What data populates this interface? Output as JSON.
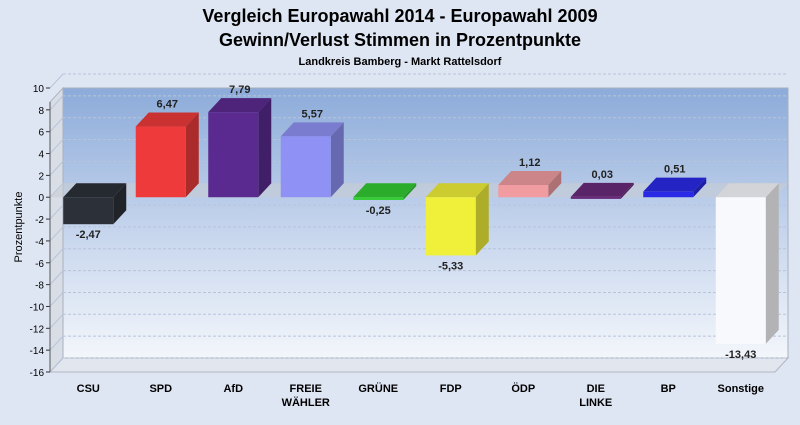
{
  "chart_data": {
    "type": "bar",
    "title": "Vergleich Europawahl 2014 - Europawahl 2009",
    "subtitle": "Gewinn/Verlust Stimmen in Prozentpunkte",
    "subtitle2": "Landkreis Bamberg - Markt Rattelsdorf",
    "ylabel": "Prozentpunkte",
    "xlabel": "",
    "ylim": [
      -16,
      10
    ],
    "yticks": [
      10,
      8,
      6,
      4,
      2,
      0,
      -2,
      -4,
      -6,
      -8,
      -10,
      -12,
      -14,
      -16
    ],
    "grid": true,
    "categories": [
      "CSU",
      "SPD",
      "AfD",
      "FREIE WÄHLER",
      "GRÜNE",
      "FDP",
      "ÖDP",
      "DIE LINKE",
      "BP",
      "Sonstige"
    ],
    "category_lines": [
      [
        "CSU"
      ],
      [
        "SPD"
      ],
      [
        "AfD"
      ],
      [
        "FREIE",
        "WÄHLER"
      ],
      [
        "GRÜNE"
      ],
      [
        "FDP"
      ],
      [
        "ÖDP"
      ],
      [
        "DIE",
        "LINKE"
      ],
      [
        "BP"
      ],
      [
        "Sonstige"
      ]
    ],
    "values": [
      -2.47,
      6.47,
      7.79,
      5.57,
      -0.25,
      -5.33,
      1.12,
      0.03,
      0.51,
      -13.43
    ],
    "value_labels": [
      "-2,47",
      "6,47",
      "7,79",
      "5,57",
      "-0,25",
      "-5,33",
      "1,12",
      "0,03",
      "0,51",
      "-13,43"
    ],
    "colors": [
      "#2c3038",
      "#ee3a3a",
      "#5a2a90",
      "#8f92f4",
      "#33cc33",
      "#f0f03a",
      "#f09ca0",
      "#6a2a7a",
      "#2a2ae6",
      "#f8f9fd"
    ]
  }
}
